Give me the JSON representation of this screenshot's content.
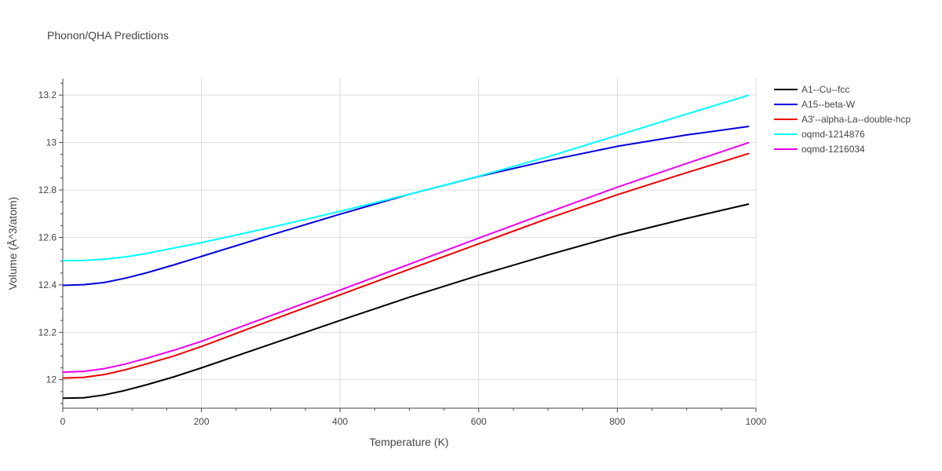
{
  "chart_data": {
    "type": "line",
    "title": "Phonon/QHA Predictions",
    "xlabel": "Temperature (K)",
    "ylabel": "Volume (Å^3/atom)",
    "xlim": [
      0,
      1000
    ],
    "ylim": [
      11.88,
      13.27
    ],
    "x_ticks": [
      0,
      200,
      400,
      600,
      800,
      1000
    ],
    "x_tick_labels": [
      "0",
      "200",
      "400",
      "600",
      "800",
      "1000"
    ],
    "y_ticks": [
      12,
      12.2,
      12.4,
      12.6,
      12.8,
      13,
      13.2
    ],
    "y_tick_labels": [
      "12",
      "12.2",
      "12.4",
      "12.6",
      "12.8",
      "13",
      "13.2"
    ],
    "grid": true,
    "legend_position": "top-right",
    "series": [
      {
        "name": "A1--Cu--fcc",
        "color": "#000000",
        "x": [
          0,
          30,
          60,
          90,
          120,
          160,
          200,
          300,
          400,
          500,
          600,
          700,
          800,
          900,
          990
        ],
        "y": [
          11.922,
          11.924,
          11.936,
          11.955,
          11.978,
          12.012,
          12.05,
          12.15,
          12.25,
          12.348,
          12.44,
          12.526,
          12.608,
          12.68,
          12.741
        ]
      },
      {
        "name": "A15--beta-W",
        "color": "#0000dd",
        "x": [
          0,
          30,
          60,
          90,
          120,
          160,
          200,
          300,
          400,
          500,
          600,
          700,
          800,
          900,
          990
        ],
        "y": [
          12.398,
          12.401,
          12.41,
          12.428,
          12.45,
          12.484,
          12.52,
          12.61,
          12.698,
          12.782,
          12.857,
          12.924,
          12.984,
          13.032,
          13.068
        ]
      },
      {
        "name": "A3'--alpha-La--double-hcp",
        "color": "#ee0000",
        "x": [
          0,
          30,
          60,
          90,
          120,
          160,
          200,
          300,
          400,
          500,
          600,
          700,
          800,
          900,
          990
        ],
        "y": [
          12.007,
          12.01,
          12.022,
          12.042,
          12.066,
          12.1,
          12.14,
          12.25,
          12.358,
          12.466,
          12.573,
          12.68,
          12.78,
          12.873,
          12.954
        ]
      },
      {
        "name": "oqmd-1214876",
        "color": "#00ffff",
        "x": [
          0,
          30,
          60,
          90,
          120,
          160,
          200,
          300,
          400,
          500,
          600,
          700,
          800,
          900,
          990
        ],
        "y": [
          12.502,
          12.503,
          12.508,
          12.518,
          12.532,
          12.555,
          12.578,
          12.642,
          12.71,
          12.782,
          12.858,
          12.94,
          13.03,
          13.12,
          13.2
        ]
      },
      {
        "name": "oqmd-1216034",
        "color": "#ee00ee",
        "x": [
          0,
          30,
          60,
          90,
          120,
          160,
          200,
          300,
          400,
          500,
          600,
          700,
          800,
          900,
          990
        ],
        "y": [
          12.032,
          12.035,
          12.047,
          12.066,
          12.09,
          12.124,
          12.162,
          12.27,
          12.378,
          12.487,
          12.597,
          12.705,
          12.812,
          12.912,
          13.0
        ]
      }
    ]
  }
}
